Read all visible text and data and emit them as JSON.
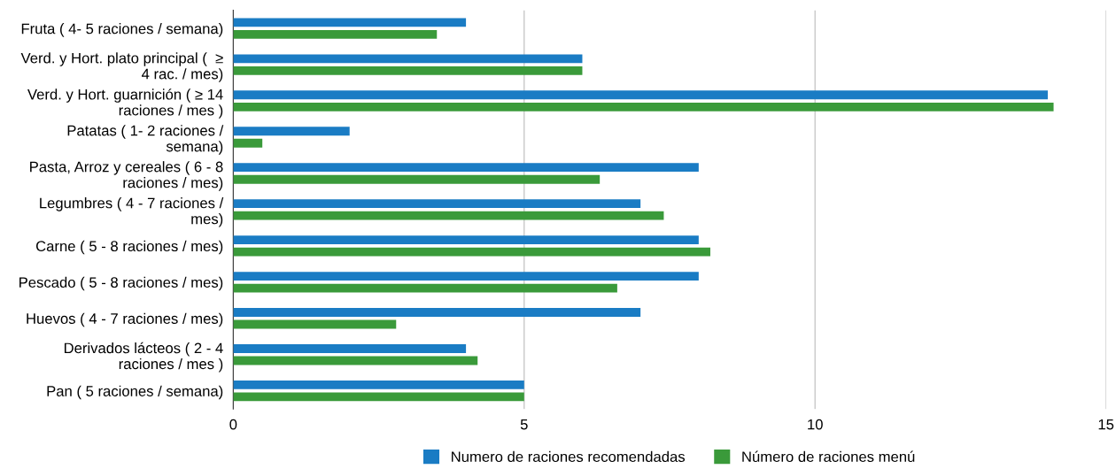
{
  "chart_data": {
    "type": "bar",
    "orientation": "horizontal",
    "categories": [
      "Fruta ( 4- 5 raciones / semana)",
      "Verd. y Hort. plato principal (  ≥\n4 rac. / mes)",
      "Verd. y Hort. guarnición ( ≥ 14\nraciones / mes )",
      "Patatas ( 1- 2 raciones /\nsemana)",
      "Pasta, Arroz y cereales ( 6 - 8\nraciones / mes)",
      "Legumbres ( 4 - 7 raciones /\nmes)",
      "Carne ( 5 - 8 raciones / mes)",
      "Pescado ( 5 - 8 raciones / mes)",
      "Huevos ( 4 - 7 raciones / mes)",
      "Derivados lácteos ( 2 - 4\nraciones / mes )",
      "Pan ( 5 raciones / semana)"
    ],
    "series": [
      {
        "name": "Numero de raciones recomendadas",
        "color": "#1a7cc4",
        "values": [
          4,
          6,
          14,
          2,
          8,
          7,
          8,
          8,
          7,
          4,
          5
        ]
      },
      {
        "name": "Número de raciones menú",
        "color": "#3a9a3a",
        "values": [
          3.5,
          6,
          14.1,
          0.5,
          6.3,
          7.4,
          8.2,
          6.6,
          2.8,
          4.2,
          5
        ]
      }
    ],
    "xlim": [
      0,
      15
    ],
    "xticks": [
      0,
      5,
      10,
      15
    ],
    "grid": "x",
    "legend": "bottom"
  }
}
